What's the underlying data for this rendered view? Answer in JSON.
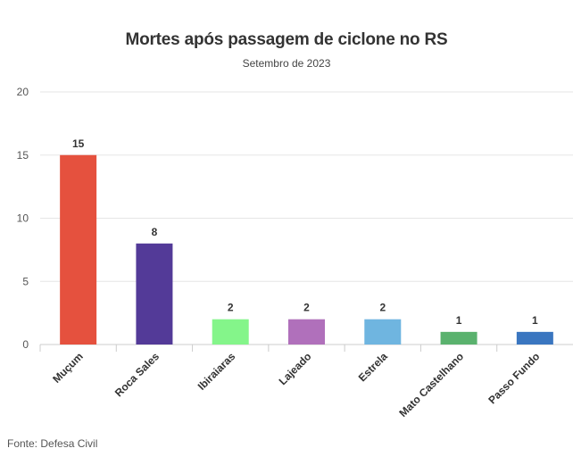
{
  "chart_data": {
    "type": "bar",
    "title": "Mortes após passagem de ciclone no RS",
    "subtitle": "Setembro de 2023",
    "source": "Fonte: Defesa Civil",
    "categories": [
      "Muçum",
      "Roca Sales",
      "Ibiraiaras",
      "Lajeado",
      "Estrela",
      "Mato Castelhano",
      "Passo Fundo"
    ],
    "values": [
      15,
      8,
      2,
      2,
      2,
      1,
      1
    ],
    "colors": [
      "#e5513e",
      "#533a98",
      "#84f58a",
      "#b070bb",
      "#6fb5e0",
      "#5ab26e",
      "#3a76c0"
    ],
    "ylim": [
      0,
      20
    ],
    "yticks": [
      0,
      5,
      10,
      15,
      20
    ],
    "grid": true,
    "data_labels": true
  }
}
